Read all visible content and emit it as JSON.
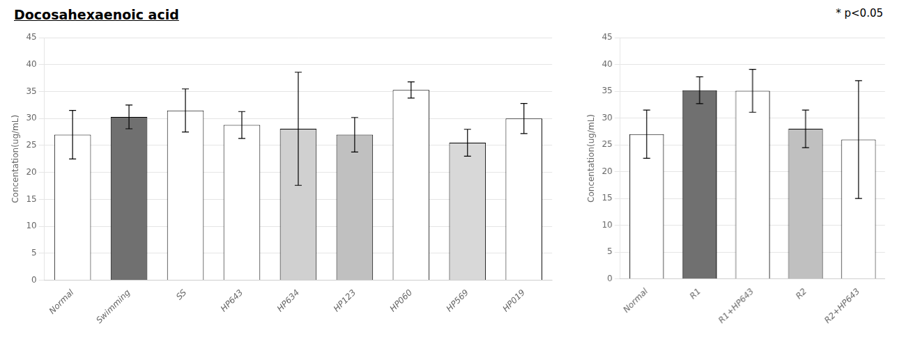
{
  "chart_data": [
    {
      "type": "bar",
      "title": "Docosahexaenoic acid",
      "categories": [
        "Normal",
        "Swimming",
        "SS",
        "HP643",
        "HP634",
        "HP123",
        "HP060",
        "HP569",
        "HP019"
      ],
      "values": [
        27.0,
        30.3,
        31.5,
        28.8,
        28.1,
        27.0,
        35.3,
        25.5,
        30.0
      ],
      "errors": [
        4.5,
        2.2,
        4.0,
        2.5,
        10.5,
        3.2,
        1.5,
        2.5,
        2.8
      ],
      "colors": [
        "#ffffff",
        "#707070",
        "#ffffff",
        "#ffffff",
        "#d0d0d0",
        "#c0c0c0",
        "#ffffff",
        "#d8d8d8",
        "#ffffff"
      ],
      "ylabel": "Concentation(ug/mL)",
      "ylim": [
        0,
        45
      ],
      "yticks": [
        0,
        5,
        10,
        15,
        20,
        25,
        30,
        35,
        40,
        45
      ],
      "grid": true
    },
    {
      "type": "bar",
      "annotation": "* p<0.05",
      "categories": [
        "Normal",
        "R1",
        "R1+HP643",
        "R2",
        "R2+HP643"
      ],
      "values": [
        27.0,
        35.2,
        35.1,
        28.0,
        26.0
      ],
      "errors": [
        4.5,
        2.5,
        4.0,
        3.5,
        11.0
      ],
      "colors": [
        "#ffffff",
        "#707070",
        "#ffffff",
        "#c0c0c0",
        "#ffffff"
      ],
      "ylabel": "Concentation(ug/mL)",
      "ylim": [
        0,
        45
      ],
      "yticks": [
        0,
        5,
        10,
        15,
        20,
        25,
        30,
        35,
        40,
        45
      ],
      "grid": true
    }
  ]
}
